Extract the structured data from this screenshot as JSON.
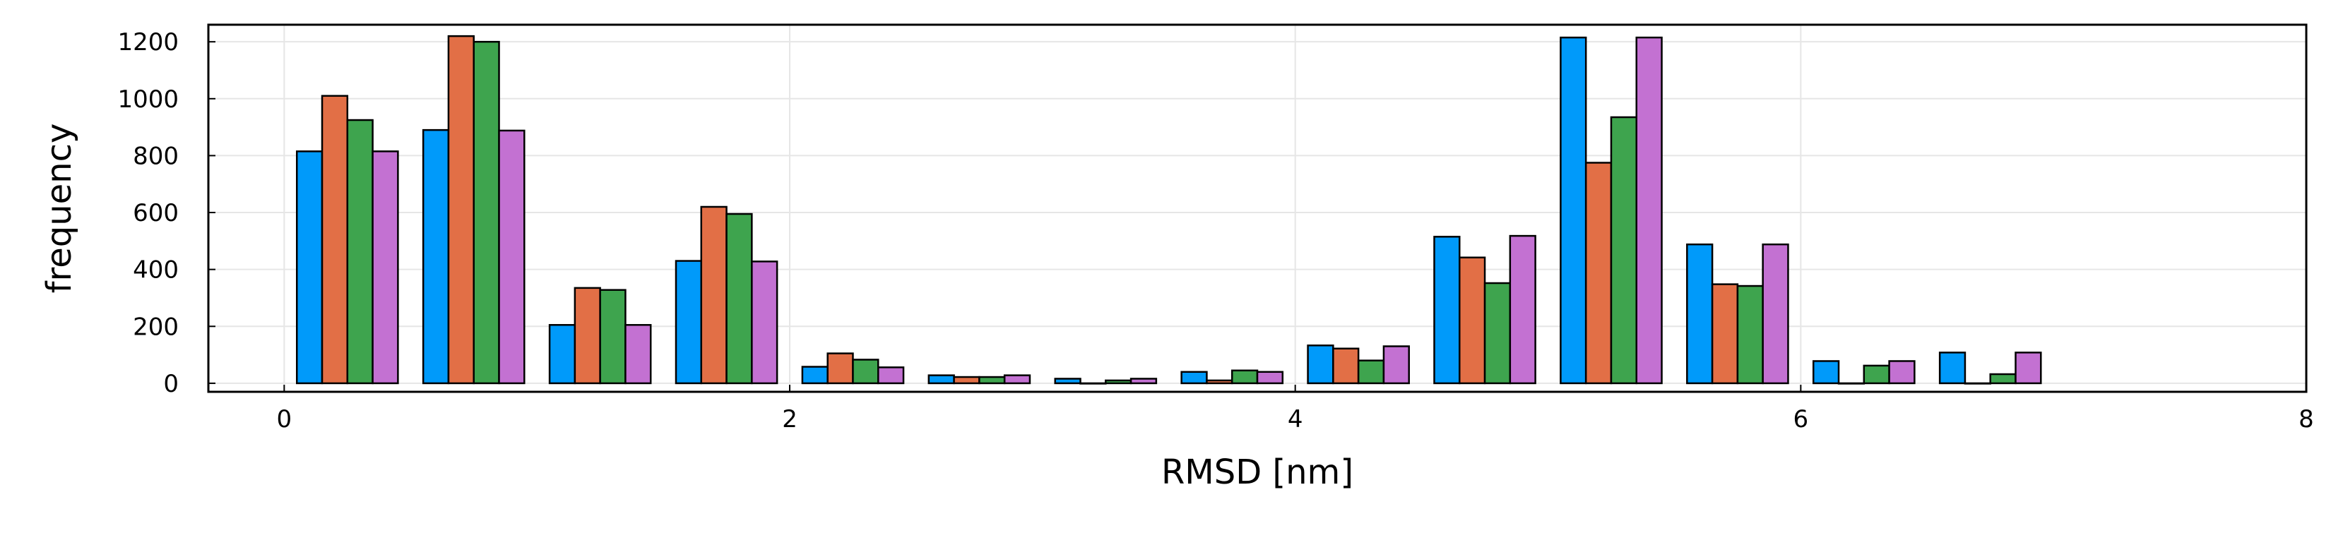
{
  "chart_data": {
    "type": "bar",
    "xlabel": "RMSD [nm]",
    "ylabel": "frequency",
    "xlim": [
      -0.3,
      8.0
    ],
    "ylim": [
      -30,
      1260
    ],
    "xticks": [
      0,
      2,
      4,
      6,
      8
    ],
    "yticks": [
      0,
      200,
      400,
      600,
      800,
      1000,
      1200
    ],
    "grid": true,
    "legend": "none",
    "bin_edges": [
      0,
      0.5,
      1.0,
      1.5,
      2.0,
      2.5,
      3.0,
      3.5,
      4.0,
      4.5,
      5.0,
      5.5,
      6.0,
      6.5,
      7.0
    ],
    "bar_offset": 0.05,
    "series": [
      {
        "color": "#009AFA",
        "values": [
          815,
          890,
          205,
          430,
          58,
          28,
          16,
          40,
          133,
          515,
          1215,
          488,
          78,
          108
        ]
      },
      {
        "color": "#E26F46",
        "values": [
          1010,
          1220,
          335,
          620,
          105,
          22,
          0,
          10,
          122,
          442,
          775,
          348,
          0,
          0
        ]
      },
      {
        "color": "#3EA44E",
        "values": [
          925,
          1200,
          328,
          595,
          83,
          22,
          10,
          45,
          80,
          352,
          935,
          342,
          62,
          32
        ]
      },
      {
        "color": "#C371D2",
        "values": [
          815,
          888,
          205,
          428,
          56,
          28,
          16,
          40,
          130,
          518,
          1215,
          488,
          78,
          108
        ]
      }
    ]
  }
}
